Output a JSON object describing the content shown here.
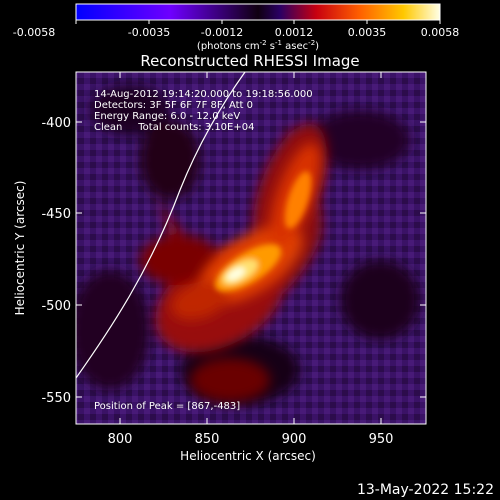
{
  "colorbar": {
    "tick_labels": [
      "-0.0058",
      "-0.0035",
      "-0.0012",
      "0.0012",
      "0.0035",
      "0.0058"
    ],
    "unit_label": "(photons cm",
    "unit_sup1": "-2",
    "unit_mid": " s",
    "unit_sup2": "-1",
    "unit_end": " asec",
    "unit_sup3": "-2",
    "unit_close": ")"
  },
  "plot": {
    "title": "Reconstructed RHESSI Image",
    "info_lines": [
      "14-Aug-2012 19:14:20.000 to 19:18:56.000",
      "Detectors: 3F 5F 6F 7F 8F, Att 0",
      "Energy Range: 6.0 - 12.0 keV",
      "Clean     Total counts: 3.10E+04"
    ],
    "peak_label": "Position of Peak = [867,-483]",
    "xlabel": "Heliocentric X (arcsec)",
    "ylabel": "Heliocentric Y (arcsec)",
    "x_ticks": [
      "800",
      "850",
      "900",
      "950"
    ],
    "y_ticks": [
      "-400",
      "-450",
      "-500",
      "-550"
    ]
  },
  "footer": {
    "timestamp": "13-May-2022 15:22"
  },
  "colors": {
    "background": "#000000",
    "text": "#ffffff",
    "limb": "#ffffff"
  }
}
